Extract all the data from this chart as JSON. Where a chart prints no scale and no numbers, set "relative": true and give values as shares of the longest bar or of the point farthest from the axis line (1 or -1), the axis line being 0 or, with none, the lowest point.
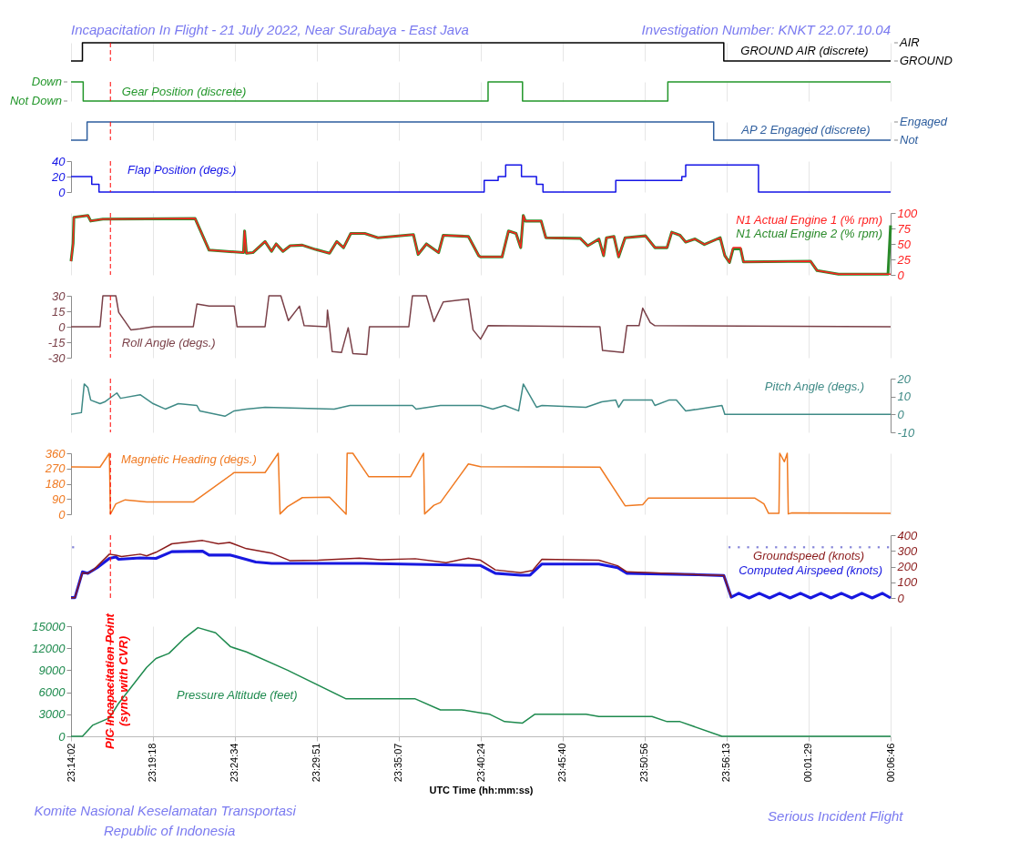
{
  "chart_data": [
    {
      "type": "step",
      "title": "Incapacitation In Flight - 21 July 2022, Near Surabaya - East Java",
      "xlim": [
        "2022-07-20T23:14:02",
        "2022-07-21T00:06:46"
      ],
      "xticks": [
        {
          "value": "2022-07-20T23:14:02",
          "label": null
        },
        {
          "value": "2022-07-20T23:19:18",
          "label": null
        },
        {
          "value": "2022-07-20T23:24:34",
          "label": null
        },
        {
          "value": "2022-07-20T23:29:51",
          "label": null
        },
        {
          "value": "2022-07-20T23:35:07",
          "label": null
        },
        {
          "value": "2022-07-20T23:40:24",
          "label": null
        },
        {
          "value": "2022-07-20T23:45:40",
          "label": null
        },
        {
          "value": "2022-07-20T23:50:56",
          "label": null
        },
        {
          "value": "2022-07-20T23:56:13",
          "label": null
        },
        {
          "value": "2022-07-21T00:01:29",
          "label": null
        },
        {
          "value": "2022-07-21T00:06:46",
          "label": null
        }
      ],
      "tick_labels": "y",
      "grid": "x",
      "relative": true,
      "annotations": [
        "Investigation Number: KNKT 22.07.10.04",
        "AIR",
        "GROUND"
      ],
      "series": [
        {
          "name": "GROUND AIR (discrete)",
          "color": "#000000",
          "axis": "y2",
          "x": [
            "2022-07-20T23:14:02",
            "2022-07-20T23:14:46",
            "2022-07-20T23:56:02",
            "2022-07-21T00:06:46"
          ],
          "values": [
            0,
            1,
            0,
            0
          ]
        }
      ],
      "ref_lines": [
        {
          "axis": "x",
          "value": "2022-07-20T23:16:34",
          "color": "#ff0000",
          "line_style": "dashed"
        }
      ]
    },
    {
      "type": "step",
      "xlim": [
        "2022-07-20T23:14:02",
        "2022-07-21T00:06:46"
      ],
      "xticks": [
        {
          "value": "2022-07-20T23:14:02",
          "label": null
        },
        {
          "value": "2022-07-20T23:19:18",
          "label": null
        },
        {
          "value": "2022-07-20T23:24:34",
          "label": null
        },
        {
          "value": "2022-07-20T23:29:51",
          "label": null
        },
        {
          "value": "2022-07-20T23:35:07",
          "label": null
        },
        {
          "value": "2022-07-20T23:40:24",
          "label": null
        },
        {
          "value": "2022-07-20T23:45:40",
          "label": null
        },
        {
          "value": "2022-07-20T23:50:56",
          "label": null
        },
        {
          "value": "2022-07-20T23:56:13",
          "label": null
        },
        {
          "value": "2022-07-21T00:01:29",
          "label": null
        },
        {
          "value": "2022-07-21T00:06:46",
          "label": null
        }
      ],
      "tick_labels": "y",
      "grid": "x",
      "relative": true,
      "annotations": [
        "Down",
        "Not Down"
      ],
      "series": [
        {
          "name": "Gear Position (discrete)",
          "color": "#22962a",
          "x": [
            "2022-07-20T23:14:02",
            "2022-07-20T23:14:49",
            "2022-07-20T23:40:52",
            "2022-07-20T23:43:05",
            "2022-07-20T23:52:26",
            "2022-07-21T00:06:46"
          ],
          "values": [
            1,
            0,
            1,
            0,
            1,
            1
          ]
        }
      ],
      "ref_lines": [
        {
          "axis": "x",
          "value": "2022-07-20T23:16:34",
          "color": "#ff0000",
          "line_style": "dashed"
        }
      ]
    },
    {
      "type": "step",
      "xlim": [
        "2022-07-20T23:14:02",
        "2022-07-21T00:06:46"
      ],
      "xticks": [
        {
          "value": "2022-07-20T23:14:02",
          "label": null
        },
        {
          "value": "2022-07-20T23:19:18",
          "label": null
        },
        {
          "value": "2022-07-20T23:24:34",
          "label": null
        },
        {
          "value": "2022-07-20T23:29:51",
          "label": null
        },
        {
          "value": "2022-07-20T23:35:07",
          "label": null
        },
        {
          "value": "2022-07-20T23:40:24",
          "label": null
        },
        {
          "value": "2022-07-20T23:45:40",
          "label": null
        },
        {
          "value": "2022-07-20T23:50:56",
          "label": null
        },
        {
          "value": "2022-07-20T23:56:13",
          "label": null
        },
        {
          "value": "2022-07-21T00:01:29",
          "label": null
        },
        {
          "value": "2022-07-21T00:06:46",
          "label": null
        }
      ],
      "tick_labels": "y",
      "grid": "x",
      "relative": true,
      "annotations": [
        "Engaged",
        "Not"
      ],
      "series": [
        {
          "name": "AP 2 Engaged (discrete)",
          "color": "#2e5e9e",
          "axis": "y2",
          "x": [
            "2022-07-20T23:14:02",
            "2022-07-20T23:15:04",
            "2022-07-20T23:55:23",
            "2022-07-21T00:06:46"
          ],
          "values": [
            0,
            1,
            0,
            0
          ]
        }
      ],
      "ref_lines": [
        {
          "axis": "x",
          "value": "2022-07-20T23:16:34",
          "color": "#ff0000",
          "line_style": "dashed"
        }
      ]
    },
    {
      "type": "step",
      "xlim": [
        "2022-07-20T23:14:02",
        "2022-07-21T00:06:46"
      ],
      "xticks": [
        {
          "value": "2022-07-20T23:14:02",
          "label": null
        },
        {
          "value": "2022-07-20T23:19:18",
          "label": null
        },
        {
          "value": "2022-07-20T23:24:34",
          "label": null
        },
        {
          "value": "2022-07-20T23:29:51",
          "label": null
        },
        {
          "value": "2022-07-20T23:35:07",
          "label": null
        },
        {
          "value": "2022-07-20T23:40:24",
          "label": null
        },
        {
          "value": "2022-07-20T23:45:40",
          "label": null
        },
        {
          "value": "2022-07-20T23:50:56",
          "label": null
        },
        {
          "value": "2022-07-20T23:56:13",
          "label": null
        },
        {
          "value": "2022-07-21T00:01:29",
          "label": null
        },
        {
          "value": "2022-07-21T00:06:46",
          "label": null
        }
      ],
      "tick_labels": "y",
      "grid": "x",
      "ylim": [
        0,
        40
      ],
      "yticks": [
        0,
        20,
        40
      ],
      "series": [
        {
          "name": "Flap Position (degs.)",
          "color": "#1414e6",
          "x": [
            "2022-07-20T23:14:02",
            "2022-07-20T23:15:22",
            "2022-07-20T23:15:50",
            "2022-07-20T23:40:37",
            "2022-07-20T23:41:31",
            "2022-07-20T23:42:00",
            "2022-07-20T23:43:01",
            "2022-07-20T23:43:59",
            "2022-07-20T23:44:24",
            "2022-07-20T23:49:05",
            "2022-07-20T23:53:20",
            "2022-07-20T23:53:35",
            "2022-07-20T23:58:16",
            "2022-07-21T00:06:46"
          ],
          "values": [
            20,
            10,
            0,
            15,
            20,
            35,
            20,
            10,
            0,
            15,
            20,
            35,
            0,
            0
          ]
        }
      ],
      "ref_lines": [
        {
          "axis": "x",
          "value": "2022-07-20T23:16:34",
          "color": "#ff0000",
          "line_style": "dashed"
        }
      ]
    },
    {
      "type": "line",
      "xlim": [
        "2022-07-20T23:14:02",
        "2022-07-21T00:06:46"
      ],
      "xticks": [
        {
          "value": "2022-07-20T23:14:02",
          "label": null
        },
        {
          "value": "2022-07-20T23:19:18",
          "label": null
        },
        {
          "value": "2022-07-20T23:24:34",
          "label": null
        },
        {
          "value": "2022-07-20T23:29:51",
          "label": null
        },
        {
          "value": "2022-07-20T23:35:07",
          "label": null
        },
        {
          "value": "2022-07-20T23:40:24",
          "label": null
        },
        {
          "value": "2022-07-20T23:45:40",
          "label": null
        },
        {
          "value": "2022-07-20T23:50:56",
          "label": null
        },
        {
          "value": "2022-07-20T23:56:13",
          "label": null
        },
        {
          "value": "2022-07-21T00:01:29",
          "label": null
        },
        {
          "value": "2022-07-21T00:06:46",
          "label": null
        }
      ],
      "tick_labels": "y",
      "grid": "x",
      "y2lim": [
        0,
        100
      ],
      "y2ticks": [
        0,
        25,
        50,
        75,
        100
      ],
      "series": [
        {
          "name": "N1 Actual Engine 1 (% rpm)",
          "color": "#ff2020",
          "axis": "y2",
          "x": [
            "2022-07-20T23:14:02",
            "2022-07-20T23:14:10",
            "2022-07-20T23:14:13",
            "2022-07-20T23:15:07",
            "2022-07-20T23:15:18",
            "2022-07-20T23:16:05",
            "2022-07-20T23:22:01",
            "2022-07-20T23:22:55",
            "2022-07-20T23:25:08",
            "2022-07-20T23:25:12",
            "2022-07-20T23:25:19",
            "2022-07-20T23:25:44",
            "2022-07-20T23:26:31",
            "2022-07-20T23:26:56",
            "2022-07-20T23:27:14",
            "2022-07-20T23:27:40",
            "2022-07-20T23:28:08",
            "2022-07-20T23:28:55",
            "2022-07-20T23:29:46",
            "2022-07-20T23:30:40",
            "2022-07-20T23:31:08",
            "2022-07-20T23:31:34",
            "2022-07-20T23:32:02",
            "2022-07-20T23:32:56",
            "2022-07-20T23:33:47",
            "2022-07-20T23:36:04",
            "2022-07-20T23:36:22",
            "2022-07-20T23:36:54",
            "2022-07-20T23:37:41",
            "2022-07-20T23:37:59",
            "2022-07-20T23:39:36",
            "2022-07-20T23:40:16",
            "2022-07-20T23:40:23",
            "2022-07-20T23:41:46",
            "2022-07-20T23:42:11",
            "2022-07-20T23:42:40",
            "2022-07-20T23:42:58",
            "2022-07-20T23:43:08",
            "2022-07-20T23:43:16",
            "2022-07-20T23:44:17",
            "2022-07-20T23:44:35",
            "2022-07-20T23:46:48",
            "2022-07-20T23:47:17",
            "2022-07-20T23:48:00",
            "2022-07-20T23:48:18",
            "2022-07-20T23:48:29",
            "2022-07-20T23:48:58",
            "2022-07-20T23:49:16",
            "2022-07-20T23:49:41",
            "2022-07-20T23:51:00",
            "2022-07-20T23:51:36",
            "2022-07-20T23:52:23",
            "2022-07-20T23:52:41",
            "2022-07-20T23:53:13",
            "2022-07-20T23:53:35",
            "2022-07-20T23:54:11",
            "2022-07-20T23:54:47",
            "2022-07-20T23:55:48",
            "2022-07-20T23:56:06",
            "2022-07-20T23:56:24",
            "2022-07-20T23:56:38",
            "2022-07-20T23:57:07",
            "2022-07-20T23:57:18",
            "2022-07-21T00:01:37",
            "2022-07-21T00:02:02",
            "2022-07-21T00:03:25",
            "2022-07-21T00:06:36",
            "2022-07-21T00:06:46"
          ],
          "values": [
            22,
            51,
            93,
            96,
            87,
            90,
            91,
            40,
            36,
            71,
            35,
            36,
            54,
            38,
            50,
            38,
            47,
            48,
            41,
            35,
            54,
            44,
            67,
            67,
            60,
            65,
            33,
            50,
            36,
            64,
            62,
            31,
            29,
            29,
            71,
            67,
            44,
            96,
            87,
            87,
            60,
            59,
            47,
            58,
            31,
            60,
            62,
            29,
            60,
            63,
            44,
            44,
            69,
            64,
            53,
            58,
            49,
            60,
            31,
            20,
            44,
            44,
            21,
            22,
            7,
            1,
            1,
            1
          ]
        },
        {
          "name": "N1 Actual Engine 2 (% rpm)",
          "color": "#2a8a2a",
          "axis": "y2",
          "x": [
            "2022-07-20T23:14:02",
            "2022-07-20T23:14:10",
            "2022-07-20T23:14:13",
            "2022-07-20T23:15:07",
            "2022-07-20T23:15:18",
            "2022-07-20T23:16:05",
            "2022-07-20T23:22:01",
            "2022-07-20T23:22:55",
            "2022-07-20T23:25:08",
            "2022-07-20T23:25:12",
            "2022-07-20T23:25:19",
            "2022-07-20T23:25:44",
            "2022-07-20T23:26:31",
            "2022-07-20T23:26:56",
            "2022-07-20T23:27:14",
            "2022-07-20T23:27:40",
            "2022-07-20T23:28:08",
            "2022-07-20T23:28:55",
            "2022-07-20T23:29:46",
            "2022-07-20T23:30:40",
            "2022-07-20T23:31:08",
            "2022-07-20T23:31:34",
            "2022-07-20T23:32:02",
            "2022-07-20T23:32:56",
            "2022-07-20T23:33:47",
            "2022-07-20T23:36:04",
            "2022-07-20T23:36:22",
            "2022-07-20T23:36:54",
            "2022-07-20T23:37:41",
            "2022-07-20T23:37:59",
            "2022-07-20T23:39:36",
            "2022-07-20T23:40:16",
            "2022-07-20T23:40:23",
            "2022-07-20T23:41:46",
            "2022-07-20T23:42:11",
            "2022-07-20T23:42:40",
            "2022-07-20T23:42:58",
            "2022-07-20T23:43:08",
            "2022-07-20T23:43:16",
            "2022-07-20T23:44:17",
            "2022-07-20T23:44:35",
            "2022-07-20T23:46:48",
            "2022-07-20T23:47:17",
            "2022-07-20T23:48:00",
            "2022-07-20T23:48:18",
            "2022-07-20T23:48:29",
            "2022-07-20T23:48:58",
            "2022-07-20T23:49:16",
            "2022-07-20T23:49:41",
            "2022-07-20T23:51:00",
            "2022-07-20T23:51:36",
            "2022-07-20T23:52:23",
            "2022-07-20T23:52:41",
            "2022-07-20T23:53:13",
            "2022-07-20T23:53:35",
            "2022-07-20T23:54:11",
            "2022-07-20T23:54:47",
            "2022-07-20T23:55:48",
            "2022-07-20T23:56:06",
            "2022-07-20T23:56:24",
            "2022-07-20T23:56:38",
            "2022-07-20T23:57:07",
            "2022-07-20T23:57:18",
            "2022-07-21T00:01:37",
            "2022-07-21T00:02:02",
            "2022-07-21T00:03:25",
            "2022-07-21T00:06:36",
            "2022-07-21T00:06:46"
          ],
          "values": [
            22,
            51,
            93,
            96,
            87,
            90,
            91,
            40,
            36,
            71,
            35,
            36,
            54,
            38,
            50,
            38,
            47,
            48,
            41,
            35,
            54,
            44,
            67,
            67,
            60,
            65,
            33,
            50,
            36,
            64,
            62,
            31,
            29,
            29,
            71,
            67,
            44,
            96,
            87,
            87,
            60,
            59,
            47,
            58,
            31,
            60,
            62,
            29,
            60,
            63,
            44,
            44,
            69,
            64,
            53,
            58,
            49,
            60,
            31,
            20,
            42,
            42,
            21,
            22,
            7,
            1,
            1,
            80
          ]
        }
      ],
      "ref_lines": [
        {
          "axis": "x",
          "value": "2022-07-20T23:16:34",
          "color": "#ff0000",
          "line_style": "dashed"
        }
      ]
    },
    {
      "type": "line",
      "xlim": [
        "2022-07-20T23:14:02",
        "2022-07-21T00:06:46"
      ],
      "xticks": [
        {
          "value": "2022-07-20T23:14:02",
          "label": null
        },
        {
          "value": "2022-07-20T23:19:18",
          "label": null
        },
        {
          "value": "2022-07-20T23:24:34",
          "label": null
        },
        {
          "value": "2022-07-20T23:29:51",
          "label": null
        },
        {
          "value": "2022-07-20T23:35:07",
          "label": null
        },
        {
          "value": "2022-07-20T23:40:24",
          "label": null
        },
        {
          "value": "2022-07-20T23:45:40",
          "label": null
        },
        {
          "value": "2022-07-20T23:50:56",
          "label": null
        },
        {
          "value": "2022-07-20T23:56:13",
          "label": null
        },
        {
          "value": "2022-07-21T00:01:29",
          "label": null
        },
        {
          "value": "2022-07-21T00:06:46",
          "label": null
        }
      ],
      "tick_labels": "y",
      "grid": "x",
      "ylim": [
        -30,
        30
      ],
      "yticks": [
        -30,
        -15,
        0,
        15,
        30
      ],
      "series": [
        {
          "name": "Roll Angle (degs.)",
          "color": "#7a4048",
          "x": [
            "2022-07-20T23:14:02",
            "2022-07-20T23:15:54",
            "2022-07-20T23:16:05",
            "2022-07-20T23:16:55",
            "2022-07-20T23:17:06",
            "2022-07-20T23:17:53",
            "2022-07-20T23:18:29",
            "2022-07-20T23:19:19",
            "2022-07-20T23:21:54",
            "2022-07-20T23:22:08",
            "2022-07-20T23:22:55",
            "2022-07-20T23:24:32",
            "2022-07-20T23:24:43",
            "2022-07-20T23:26:31",
            "2022-07-20T23:26:46",
            "2022-07-20T23:27:32",
            "2022-07-20T23:28:01",
            "2022-07-20T23:28:44",
            "2022-07-20T23:29:02",
            "2022-07-20T23:30:29",
            "2022-07-20T23:30:32",
            "2022-07-20T23:30:40",
            "2022-07-20T23:30:50",
            "2022-07-20T23:31:26",
            "2022-07-20T23:31:52",
            "2022-07-20T23:32:10",
            "2022-07-20T23:33:04",
            "2022-07-20T23:33:14",
            "2022-07-20T23:35:46",
            "2022-07-20T23:36:00",
            "2022-07-20T23:36:54",
            "2022-07-20T23:37:23",
            "2022-07-20T23:37:59",
            "2022-07-20T23:39:36",
            "2022-07-20T23:39:54",
            "2022-07-20T23:40:23",
            "2022-07-20T23:40:52",
            "2022-07-20T23:48:04",
            "2022-07-20T23:48:14",
            "2022-07-20T23:49:34",
            "2022-07-20T23:49:48",
            "2022-07-20T23:50:35",
            "2022-07-20T23:50:49",
            "2022-07-20T23:51:18",
            "2022-07-20T23:51:36",
            "2022-07-21T00:06:46"
          ],
          "values": [
            0,
            0,
            30,
            30,
            14,
            -3,
            -2,
            0,
            0,
            22,
            20,
            20,
            0,
            0,
            30,
            30,
            6,
            20,
            1,
            0,
            16,
            0,
            -24,
            -25,
            -1,
            -26,
            -27,
            0,
            0,
            30,
            30,
            5,
            24,
            27,
            -3,
            -12,
            1,
            0,
            -23,
            -25,
            1,
            1,
            18,
            4,
            1,
            0
          ]
        }
      ],
      "ref_lines": [
        {
          "axis": "x",
          "value": "2022-07-20T23:16:34",
          "color": "#ff0000",
          "line_style": "dashed"
        }
      ]
    },
    {
      "type": "line",
      "xlim": [
        "2022-07-20T23:14:02",
        "2022-07-21T00:06:46"
      ],
      "xticks": [
        {
          "value": "2022-07-20T23:14:02",
          "label": null
        },
        {
          "value": "2022-07-20T23:19:18",
          "label": null
        },
        {
          "value": "2022-07-20T23:24:34",
          "label": null
        },
        {
          "value": "2022-07-20T23:29:51",
          "label": null
        },
        {
          "value": "2022-07-20T23:35:07",
          "label": null
        },
        {
          "value": "2022-07-20T23:40:24",
          "label": null
        },
        {
          "value": "2022-07-20T23:45:40",
          "label": null
        },
        {
          "value": "2022-07-20T23:50:56",
          "label": null
        },
        {
          "value": "2022-07-20T23:56:13",
          "label": null
        },
        {
          "value": "2022-07-21T00:01:29",
          "label": null
        },
        {
          "value": "2022-07-21T00:06:46",
          "label": null
        }
      ],
      "tick_labels": "y",
      "grid": "x",
      "y2lim": [
        -10,
        20
      ],
      "y2ticks": [
        -10,
        0,
        10,
        20
      ],
      "series": [
        {
          "name": "Pitch Angle (degs.)",
          "color": "#3f8a86",
          "axis": "y2",
          "x": [
            "2022-07-20T23:14:02",
            "2022-07-20T23:14:42",
            "2022-07-20T23:14:53",
            "2022-07-20T23:15:07",
            "2022-07-20T23:15:18",
            "2022-07-20T23:15:54",
            "2022-07-20T23:16:12",
            "2022-07-20T23:16:59",
            "2022-07-20T23:17:13",
            "2022-07-20T23:18:29",
            "2022-07-20T23:19:19",
            "2022-07-20T23:20:06",
            "2022-07-20T23:20:56",
            "2022-07-20T23:22:08",
            "2022-07-20T23:22:19",
            "2022-07-20T23:23:56",
            "2022-07-20T23:24:32",
            "2022-07-20T23:25:19",
            "2022-07-20T23:26:31",
            "2022-07-20T23:30:58",
            "2022-07-20T23:31:59",
            "2022-07-20T23:36:00",
            "2022-07-20T23:36:14",
            "2022-07-20T23:37:48",
            "2022-07-20T23:40:23",
            "2022-07-20T23:41:10",
            "2022-07-20T23:41:56",
            "2022-07-20T23:42:50",
            "2022-07-20T23:43:08",
            "2022-07-20T23:43:59",
            "2022-07-20T23:44:20",
            "2022-07-20T23:47:10",
            "2022-07-20T23:48:11",
            "2022-07-20T23:49:05",
            "2022-07-20T23:49:16",
            "2022-07-20T23:49:34",
            "2022-07-20T23:51:25",
            "2022-07-20T23:51:36",
            "2022-07-20T23:52:30",
            "2022-07-20T23:52:59",
            "2022-07-20T23:53:35",
            "2022-07-20T23:54:25",
            "2022-07-20T23:55:55",
            "2022-07-20T23:56:06",
            "2022-07-20T23:58:26",
            "2022-07-21T00:06:46"
          ],
          "values": [
            0,
            1,
            17,
            15,
            8,
            6,
            7,
            12,
            9,
            11,
            6,
            3,
            6,
            5,
            2,
            -1,
            2,
            3,
            4,
            3,
            5,
            5,
            3,
            5,
            5,
            3,
            5,
            2,
            17,
            4,
            5,
            4,
            7,
            8,
            4,
            8,
            8,
            5,
            8,
            8,
            2,
            3,
            5,
            0,
            0,
            0
          ]
        }
      ],
      "ref_lines": [
        {
          "axis": "x",
          "value": "2022-07-20T23:16:34",
          "color": "#ff0000",
          "line_style": "dashed"
        }
      ]
    },
    {
      "type": "line",
      "xlim": [
        "2022-07-20T23:14:02",
        "2022-07-21T00:06:46"
      ],
      "xticks": [
        {
          "value": "2022-07-20T23:14:02",
          "label": null
        },
        {
          "value": "2022-07-20T23:19:18",
          "label": null
        },
        {
          "value": "2022-07-20T23:24:34",
          "label": null
        },
        {
          "value": "2022-07-20T23:29:51",
          "label": null
        },
        {
          "value": "2022-07-20T23:35:07",
          "label": null
        },
        {
          "value": "2022-07-20T23:40:24",
          "label": null
        },
        {
          "value": "2022-07-20T23:45:40",
          "label": null
        },
        {
          "value": "2022-07-20T23:50:56",
          "label": null
        },
        {
          "value": "2022-07-20T23:56:13",
          "label": null
        },
        {
          "value": "2022-07-21T00:01:29",
          "label": null
        },
        {
          "value": "2022-07-21T00:06:46",
          "label": null
        }
      ],
      "tick_labels": "y",
      "grid": "x",
      "ylim": [
        0,
        360
      ],
      "yticks": [
        0,
        90,
        180,
        270,
        360
      ],
      "series": [
        {
          "name": "Magnetic Heading (degs.)",
          "color": "#f07a22",
          "x": [
            "2022-07-20T23:14:02",
            "2022-07-20T23:15:54",
            "2022-07-20T23:16:30",
            "2022-07-20T23:16:34",
            "2022-07-20T23:16:55",
            "2022-07-20T23:17:31",
            "2022-07-20T23:18:54",
            "2022-07-20T23:21:54",
            "2022-07-20T23:24:32",
            "2022-07-20T23:26:31",
            "2022-07-20T23:27:22",
            "2022-07-20T23:27:29",
            "2022-07-20T23:27:58",
            "2022-07-20T23:28:55",
            "2022-07-20T23:30:40",
            "2022-07-20T23:31:44",
            "2022-07-20T23:31:48",
            "2022-07-20T23:32:10",
            "2022-07-20T23:33:11",
            "2022-07-20T23:35:53",
            "2022-07-20T23:36:43",
            "2022-07-20T23:36:47",
            "2022-07-20T23:37:23",
            "2022-07-20T23:37:48",
            "2022-07-20T23:39:36",
            "2022-07-20T23:40:23",
            "2022-07-20T23:48:04",
            "2022-07-20T23:49:41",
            "2022-07-20T23:50:49",
            "2022-07-20T23:51:11",
            "2022-07-20T23:58:01",
            "2022-07-20T23:58:37",
            "2022-07-20T23:58:55",
            "2022-07-20T23:59:35",
            "2022-07-20T23:59:38",
            "2022-07-20T23:59:56",
            "2022-07-21T00:00:07",
            "2022-07-21T00:00:11",
            "2022-07-21T00:00:25",
            "2022-07-21T00:06:46"
          ],
          "values": [
            280,
            278,
            360,
            0,
            61,
            85,
            72,
            72,
            246,
            246,
            360,
            2,
            45,
            98,
            101,
            0,
            360,
            360,
            222,
            222,
            360,
            2,
            53,
            69,
            297,
            281,
            278,
            50,
            56,
            96,
            96,
            61,
            5,
            5,
            360,
            310,
            360,
            2,
            8,
            5
          ]
        }
      ],
      "ref_lines": [
        {
          "axis": "x",
          "value": "2022-07-20T23:16:34",
          "color": "#ff0000",
          "line_style": "dashed"
        }
      ]
    },
    {
      "type": "line",
      "xlim": [
        "2022-07-20T23:14:02",
        "2022-07-21T00:06:46"
      ],
      "xticks": [
        {
          "value": "2022-07-20T23:14:02",
          "label": null
        },
        {
          "value": "2022-07-20T23:19:18",
          "label": null
        },
        {
          "value": "2022-07-20T23:24:34",
          "label": null
        },
        {
          "value": "2022-07-20T23:29:51",
          "label": null
        },
        {
          "value": "2022-07-20T23:35:07",
          "label": null
        },
        {
          "value": "2022-07-20T23:40:24",
          "label": null
        },
        {
          "value": "2022-07-20T23:45:40",
          "label": null
        },
        {
          "value": "2022-07-20T23:50:56",
          "label": null
        },
        {
          "value": "2022-07-20T23:56:13",
          "label": null
        },
        {
          "value": "2022-07-21T00:01:29",
          "label": null
        },
        {
          "value": "2022-07-21T00:06:46",
          "label": null
        }
      ],
      "tick_labels": "y",
      "grid": "x",
      "y2lim": [
        0,
        400
      ],
      "y2ticks": [
        0,
        100,
        200,
        300,
        400
      ],
      "series": [
        {
          "name": "Groundspeed (knots)",
          "color": "#8b1c1c",
          "axis": "y2",
          "x": [
            "2022-07-20T23:14:02",
            "2022-07-20T23:14:17",
            "2022-07-20T23:14:46",
            "2022-07-20T23:15:07",
            "2022-07-20T23:15:29",
            "2022-07-20T23:16:30",
            "2022-07-20T23:16:55",
            "2022-07-20T23:17:17",
            "2022-07-20T23:18:29",
            "2022-07-20T23:18:54",
            "2022-07-20T23:19:30",
            "2022-07-20T23:20:31",
            "2022-07-20T23:22:30",
            "2022-07-20T23:23:31",
            "2022-07-20T23:24:14",
            "2022-07-20T23:25:19",
            "2022-07-20T23:26:56",
            "2022-07-20T23:28:08",
            "2022-07-20T23:29:56",
            "2022-07-20T23:32:35",
            "2022-07-20T23:33:58",
            "2022-07-20T23:36:11",
            "2022-07-20T23:38:10",
            "2022-07-20T23:39:36",
            "2022-07-20T23:40:23",
            "2022-07-20T23:41:20",
            "2022-07-20T23:42:58",
            "2022-07-20T23:43:44",
            "2022-07-20T23:44:20",
            "2022-07-20T23:48:00",
            "2022-07-20T23:49:12",
            "2022-07-20T23:49:48",
            "2022-07-20T23:54:25",
            "2022-07-20T23:56:02",
            "2022-07-20T23:56:31"
          ],
          "values": [
            2,
            2,
            161,
            157,
            179,
            279,
            273,
            264,
            279,
            268,
            291,
            345,
            366,
            345,
            354,
            314,
            286,
            237,
            241,
            254,
            243,
            250,
            225,
            254,
            240,
            179,
            161,
            175,
            246,
            241,
            205,
            166,
            148,
            143,
            5
          ]
        },
        {
          "name": "Computed Airspeed (knots)",
          "color": "#1818e0",
          "axis": "y2",
          "x": [
            "2022-07-20T23:14:02",
            "2022-07-20T23:14:17",
            "2022-07-20T23:14:46",
            "2022-07-20T23:15:07",
            "2022-07-20T23:15:43",
            "2022-07-20T23:16:30",
            "2022-07-20T23:16:55",
            "2022-07-20T23:17:06",
            "2022-07-20T23:18:29",
            "2022-07-20T23:19:30",
            "2022-07-20T23:20:31",
            "2022-07-20T23:22:30",
            "2022-07-20T23:22:55",
            "2022-07-20T23:24:18",
            "2022-07-20T23:25:55",
            "2022-07-20T23:26:56",
            "2022-07-20T23:32:56",
            "2022-07-20T23:40:23",
            "2022-07-20T23:41:20",
            "2022-07-20T23:42:58",
            "2022-07-20T23:43:34",
            "2022-07-20T23:44:20",
            "2022-07-20T23:48:00",
            "2022-07-20T23:49:12",
            "2022-07-20T23:49:48",
            "2022-07-20T23:54:25",
            "2022-07-20T23:56:02",
            "2022-07-20T23:56:31",
            "2022-07-20T23:57:00",
            "2022-07-20T23:57:40",
            "2022-07-20T23:58:19",
            "2022-07-20T23:58:59",
            "2022-07-20T23:59:38",
            "2022-07-21T00:00:18",
            "2022-07-21T00:00:58",
            "2022-07-21T00:01:37",
            "2022-07-21T00:02:17",
            "2022-07-21T00:02:56",
            "2022-07-21T00:03:36",
            "2022-07-21T00:04:16",
            "2022-07-21T00:04:55",
            "2022-07-21T00:05:35",
            "2022-07-21T00:06:14",
            "2022-07-21T00:06:46"
          ],
          "values": [
            2,
            2,
            166,
            157,
            193,
            252,
            261,
            246,
            255,
            252,
            295,
            298,
            273,
            273,
            229,
            220,
            220,
            207,
            157,
            145,
            145,
            216,
            216,
            193,
            157,
            148,
            143,
            5,
            30,
            0,
            30,
            0,
            30,
            0,
            30,
            0,
            30,
            0,
            30,
            0,
            30,
            0,
            30,
            0
          ]
        },
        {
          "type": "scatter",
          "marker": "square",
          "color": "#5050c8",
          "axis": "y2",
          "x": [
            "2022-07-20T23:14:10",
            "2022-07-20T23:56:24",
            "2022-07-20T23:57:00",
            "2022-07-20T23:57:36",
            "2022-07-20T23:58:12",
            "2022-07-20T23:58:48",
            "2022-07-20T23:59:24",
            "2022-07-21T00:00:00",
            "2022-07-21T00:00:36",
            "2022-07-21T00:01:12",
            "2022-07-21T00:01:48",
            "2022-07-21T00:02:24",
            "2022-07-21T00:03:00",
            "2022-07-21T00:03:36",
            "2022-07-21T00:04:12",
            "2022-07-21T00:04:48",
            "2022-07-21T00:05:24",
            "2022-07-21T00:06:00",
            "2022-07-21T00:06:36"
          ],
          "values": [
            323,
            323,
            323,
            323,
            323,
            323,
            323,
            323,
            323,
            323,
            323,
            323,
            323,
            323,
            323,
            323,
            323,
            323,
            323
          ]
        }
      ],
      "ref_lines": [
        {
          "axis": "x",
          "value": "2022-07-20T23:16:34",
          "color": "#ff0000",
          "line_style": "dashed"
        }
      ]
    },
    {
      "type": "line",
      "xlabel": "UTC Time (hh:mm:ss)",
      "annotations": [
        "Komite Nasional Keselamatan Transportasi",
        "Republic of Indonesia",
        "Serious Incident Flight"
      ],
      "xlim": [
        "2022-07-20T23:14:02",
        "2022-07-21T00:06:46"
      ],
      "xticks": [
        {
          "value": "2022-07-20T23:14:02",
          "label": "23:14:02"
        },
        {
          "value": "2022-07-20T23:19:18",
          "label": "23:19:18"
        },
        {
          "value": "2022-07-20T23:24:34",
          "label": "23:24:34"
        },
        {
          "value": "2022-07-20T23:29:51",
          "label": "23:29:51"
        },
        {
          "value": "2022-07-20T23:35:07",
          "label": "23:35:07"
        },
        {
          "value": "2022-07-20T23:40:24",
          "label": "23:40:24"
        },
        {
          "value": "2022-07-20T23:45:40",
          "label": "23:45:40"
        },
        {
          "value": "2022-07-20T23:50:56",
          "label": "23:50:56"
        },
        {
          "value": "2022-07-20T23:56:13",
          "label": "23:56:13"
        },
        {
          "value": "2022-07-21T00:01:29",
          "label": "00:01:29"
        },
        {
          "value": "2022-07-21T00:06:46",
          "label": "00:06:46"
        }
      ],
      "grid": "x",
      "ylim": [
        0,
        15000
      ],
      "yticks": [
        0,
        3000,
        6000,
        9000,
        12000,
        15000
      ],
      "series": [
        {
          "name": "Pressure Altitude (feet)",
          "color": "#1e8a4e",
          "x": [
            "2022-07-20T23:14:02",
            "2022-07-20T23:14:46",
            "2022-07-20T23:15:25",
            "2022-07-20T23:16:30",
            "2022-07-20T23:17:06",
            "2022-07-20T23:18:54",
            "2022-07-20T23:19:30",
            "2022-07-20T23:20:20",
            "2022-07-20T23:21:18",
            "2022-07-20T23:22:12",
            "2022-07-20T23:23:20",
            "2022-07-20T23:24:18",
            "2022-07-20T23:25:19",
            "2022-07-20T23:27:58",
            "2022-07-20T23:31:44",
            "2022-07-20T23:36:11",
            "2022-07-20T23:37:48",
            "2022-07-20T23:39:11",
            "2022-07-20T23:40:23",
            "2022-07-20T23:40:59",
            "2022-07-20T23:41:56",
            "2022-07-20T23:43:05",
            "2022-07-20T23:43:52",
            "2022-07-20T23:47:10",
            "2022-07-20T23:48:00",
            "2022-07-20T23:51:25",
            "2022-07-20T23:52:23",
            "2022-07-20T23:53:13",
            "2022-07-20T23:55:55",
            "2022-07-21T00:06:46"
          ],
          "values": [
            0,
            0,
            1500,
            2500,
            4500,
            9400,
            10600,
            11300,
            13300,
            14800,
            14100,
            12200,
            11500,
            9000,
            5100,
            5100,
            3600,
            3600,
            3200,
            3000,
            2000,
            1800,
            3000,
            3000,
            2700,
            2700,
            2000,
            2000,
            0,
            0
          ]
        }
      ],
      "ref_lines": [
        {
          "axis": "x",
          "value": "2022-07-20T23:16:34",
          "color": "#ff0000",
          "line_style": "dashed",
          "label": "PIC Incapacitation Point\n(sync with CVR)"
        }
      ]
    }
  ]
}
